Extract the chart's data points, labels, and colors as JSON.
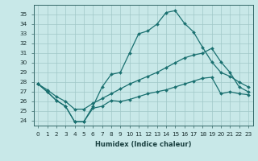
{
  "xlabel": "Humidex (Indice chaleur)",
  "ylabel": "",
  "background_color": "#c8e8e8",
  "line_color": "#1a7070",
  "x": [
    0,
    1,
    2,
    3,
    4,
    5,
    6,
    7,
    8,
    9,
    10,
    11,
    12,
    13,
    14,
    15,
    16,
    17,
    18,
    19,
    20,
    21,
    22,
    23
  ],
  "line_max": [
    27.8,
    27.0,
    26.1,
    25.5,
    23.9,
    23.9,
    25.5,
    27.5,
    28.8,
    29.0,
    31.0,
    33.0,
    33.3,
    34.0,
    35.2,
    35.4,
    34.1,
    33.2,
    31.6,
    30.1,
    29.0,
    28.6,
    28.0,
    27.5
  ],
  "line_min": [
    27.8,
    27.0,
    26.1,
    25.5,
    23.9,
    23.9,
    25.3,
    25.5,
    26.1,
    26.0,
    26.2,
    26.5,
    26.8,
    27.0,
    27.2,
    27.5,
    27.8,
    28.1,
    28.4,
    28.5,
    26.8,
    27.0,
    26.8,
    26.7
  ],
  "line_mean": [
    27.8,
    27.2,
    26.5,
    26.0,
    25.2,
    25.2,
    25.8,
    26.3,
    26.8,
    27.3,
    27.8,
    28.2,
    28.6,
    29.0,
    29.5,
    30.0,
    30.5,
    30.8,
    31.0,
    31.5,
    30.1,
    29.0,
    27.5,
    27.0
  ],
  "ylim": [
    23.5,
    36.0
  ],
  "xlim": [
    -0.5,
    23.5
  ],
  "yticks": [
    24,
    25,
    26,
    27,
    28,
    29,
    30,
    31,
    32,
    33,
    34,
    35
  ],
  "xticks": [
    0,
    1,
    2,
    3,
    4,
    5,
    6,
    7,
    8,
    9,
    10,
    11,
    12,
    13,
    14,
    15,
    16,
    17,
    18,
    19,
    20,
    21,
    22,
    23
  ],
  "grid_color": "#a0c8c8",
  "marker": "D",
  "markersize": 2.0,
  "linewidth": 0.9,
  "xlabel_fontsize": 6.0,
  "tick_fontsize": 5.2
}
